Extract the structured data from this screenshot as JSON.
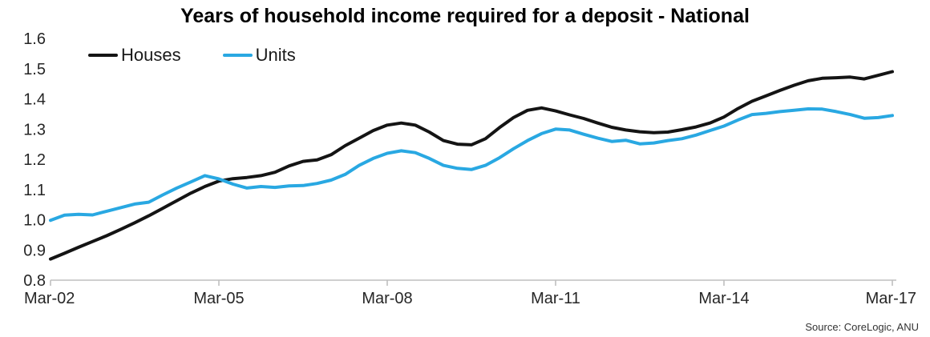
{
  "title": "Years of household income required for a deposit - National",
  "source": "Source: CoreLogic, ANU",
  "colors": {
    "houses_line": "#141414",
    "units_line": "#29A8E2",
    "axis": "#BFBFBF",
    "tick_label": "#262626",
    "title": "#000000"
  },
  "chart_data": {
    "type": "line",
    "title": "Years of household income required for a deposit - National",
    "xlabel": "",
    "ylabel": "",
    "x_frequency": "quarterly",
    "x_start": "Mar-02",
    "x_end": "Mar-17",
    "x_tick_labels": [
      "Mar-02",
      "Mar-05",
      "Mar-08",
      "Mar-11",
      "Mar-14",
      "Mar-17"
    ],
    "x_tick_indices": [
      0,
      12,
      24,
      36,
      48,
      60
    ],
    "ylim": [
      0.8,
      1.6
    ],
    "y_tick_step": 0.1,
    "y_tick_labels": [
      "0.8",
      "0.9",
      "1.0",
      "1.1",
      "1.2",
      "1.3",
      "1.4",
      "1.5",
      "1.6"
    ],
    "grid": false,
    "legend_position": "top-left",
    "series": [
      {
        "name": "Houses",
        "color": "#141414",
        "stroke_width": 4,
        "values": [
          0.87,
          0.889,
          0.909,
          0.928,
          0.947,
          0.968,
          0.99,
          1.013,
          1.038,
          1.063,
          1.088,
          1.11,
          1.128,
          1.136,
          1.14,
          1.146,
          1.157,
          1.178,
          1.193,
          1.198,
          1.215,
          1.245,
          1.27,
          1.295,
          1.313,
          1.32,
          1.313,
          1.29,
          1.262,
          1.25,
          1.248,
          1.268,
          1.305,
          1.338,
          1.362,
          1.37,
          1.36,
          1.347,
          1.335,
          1.32,
          1.306,
          1.297,
          1.291,
          1.288,
          1.29,
          1.298,
          1.307,
          1.32,
          1.34,
          1.368,
          1.392,
          1.41,
          1.428,
          1.445,
          1.46,
          1.468,
          1.47,
          1.472,
          1.466,
          1.478,
          1.49
        ]
      },
      {
        "name": "Units",
        "color": "#29A8E2",
        "stroke_width": 4,
        "values": [
          0.998,
          1.015,
          1.018,
          1.016,
          1.028,
          1.04,
          1.052,
          1.058,
          1.082,
          1.105,
          1.125,
          1.146,
          1.135,
          1.118,
          1.105,
          1.11,
          1.107,
          1.112,
          1.113,
          1.12,
          1.131,
          1.15,
          1.18,
          1.203,
          1.22,
          1.228,
          1.222,
          1.203,
          1.18,
          1.17,
          1.166,
          1.18,
          1.205,
          1.235,
          1.262,
          1.285,
          1.3,
          1.297,
          1.283,
          1.27,
          1.259,
          1.263,
          1.251,
          1.254,
          1.262,
          1.268,
          1.28,
          1.295,
          1.31,
          1.33,
          1.348,
          1.352,
          1.358,
          1.362,
          1.367,
          1.366,
          1.358,
          1.348,
          1.336,
          1.338,
          1.345
        ]
      }
    ]
  }
}
